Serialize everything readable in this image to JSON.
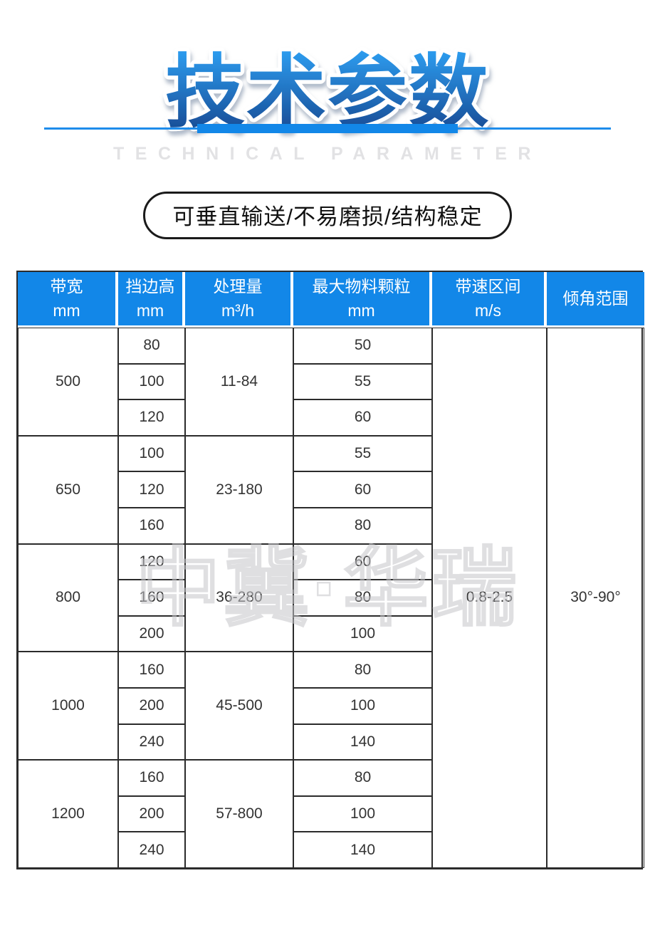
{
  "page": {
    "title": "技术参数",
    "subtitle": "TECHNICAL PARAMETER",
    "badge": "可垂直输送/不易磨损/结构稳定",
    "watermark": "中冀·华瑞"
  },
  "colors": {
    "accent": "#1287e8",
    "divider": "#1e8ceb",
    "header_bg": "#1287e8",
    "title_top": "#2e9ff2",
    "title_bottom": "#16468f",
    "border_dark": "#2b2b2b",
    "body_text": "#333333",
    "subtitle_gray": "#e2e2e4",
    "watermark": "#c6c6ca",
    "badge_border": "#1a1a1a"
  },
  "table": {
    "headers": [
      {
        "label": "带宽",
        "unit": "mm"
      },
      {
        "label": "挡边高",
        "unit": "mm"
      },
      {
        "label": "处理量",
        "unit": "m³/h"
      },
      {
        "label": "最大物料颗粒",
        "unit": "mm"
      },
      {
        "label": "带速区间",
        "unit": "m/s"
      },
      {
        "label": "倾角范围",
        "unit": ""
      }
    ],
    "groups": [
      {
        "width": "500",
        "capacity": "11-84",
        "rows": [
          {
            "edge": "80",
            "particle": "50"
          },
          {
            "edge": "100",
            "particle": "55"
          },
          {
            "edge": "120",
            "particle": "60"
          }
        ]
      },
      {
        "width": "650",
        "capacity": "23-180",
        "rows": [
          {
            "edge": "100",
            "particle": "55"
          },
          {
            "edge": "120",
            "particle": "60"
          },
          {
            "edge": "160",
            "particle": "80"
          }
        ]
      },
      {
        "width": "800",
        "capacity": "36-280",
        "rows": [
          {
            "edge": "120",
            "particle": "60"
          },
          {
            "edge": "160",
            "particle": "80"
          },
          {
            "edge": "200",
            "particle": "100"
          }
        ]
      },
      {
        "width": "1000",
        "capacity": "45-500",
        "rows": [
          {
            "edge": "160",
            "particle": "80"
          },
          {
            "edge": "200",
            "particle": "100"
          },
          {
            "edge": "240",
            "particle": "140"
          }
        ]
      },
      {
        "width": "1200",
        "capacity": "57-800",
        "rows": [
          {
            "edge": "160",
            "particle": "80"
          },
          {
            "edge": "200",
            "particle": "100"
          },
          {
            "edge": "240",
            "particle": "140"
          }
        ]
      }
    ],
    "belt_speed": "0.8-2.5",
    "angle_range": "30°-90°"
  }
}
